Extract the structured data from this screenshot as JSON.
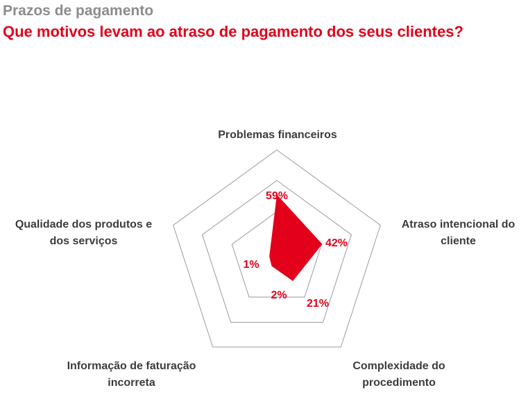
{
  "header": {
    "supertitle": "Prazos de pagamento",
    "title": "Que motivos levam ao atraso de pagamento dos seus clientes?"
  },
  "chart_data": {
    "type": "radar",
    "title": "Que motivos levam ao atraso de pagamento dos seus clientes?",
    "categories": [
      "Problemas financeiros",
      "Atraso intencional do cliente",
      "Complexidade do procedimento",
      "Informação de faturação incorreta",
      "Qualidade dos produtos e dos serviços"
    ],
    "values": [
      59,
      42,
      21,
      2,
      1
    ],
    "value_labels": [
      "59%",
      "42%",
      "21%",
      "2%",
      "1%"
    ],
    "rings": 3,
    "color": "#e2001a",
    "grid_color": "#9a9a9a"
  }
}
